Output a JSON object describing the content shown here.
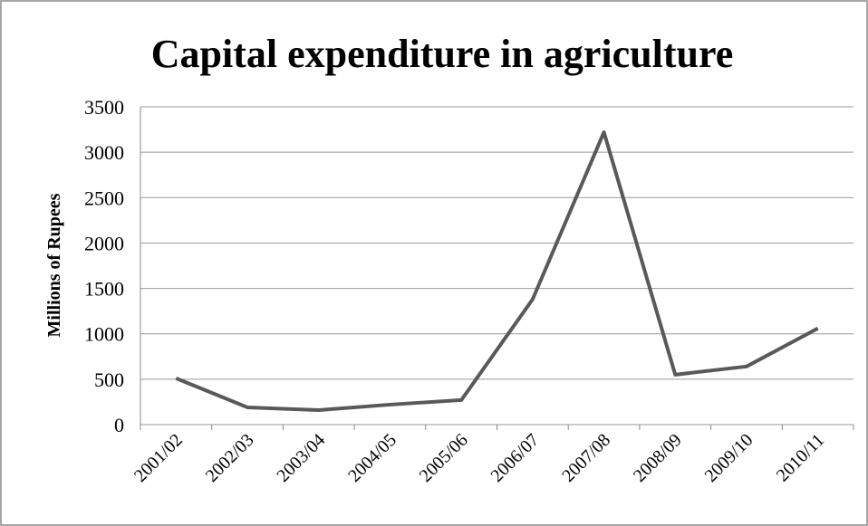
{
  "chart_data": {
    "type": "line",
    "title": "Capital expenditure in agriculture",
    "y_label": "Millions  of Rupees",
    "categories": [
      "2001/02",
      "2002/03",
      "2003/04",
      "2004/05",
      "2005/06",
      "2006/07",
      "2007/08",
      "2008/09",
      "2009/10",
      "2010/11"
    ],
    "series": [
      {
        "name": "Capital expenditure",
        "color": "#595959",
        "values": [
          510,
          190,
          160,
          220,
          270,
          1380,
          3220,
          550,
          640,
          1060
        ]
      }
    ],
    "ylim": [
      0,
      3500
    ],
    "yticks": [
      0,
      500,
      1000,
      1500,
      2000,
      2500,
      3000,
      3500
    ],
    "grid": true
  }
}
